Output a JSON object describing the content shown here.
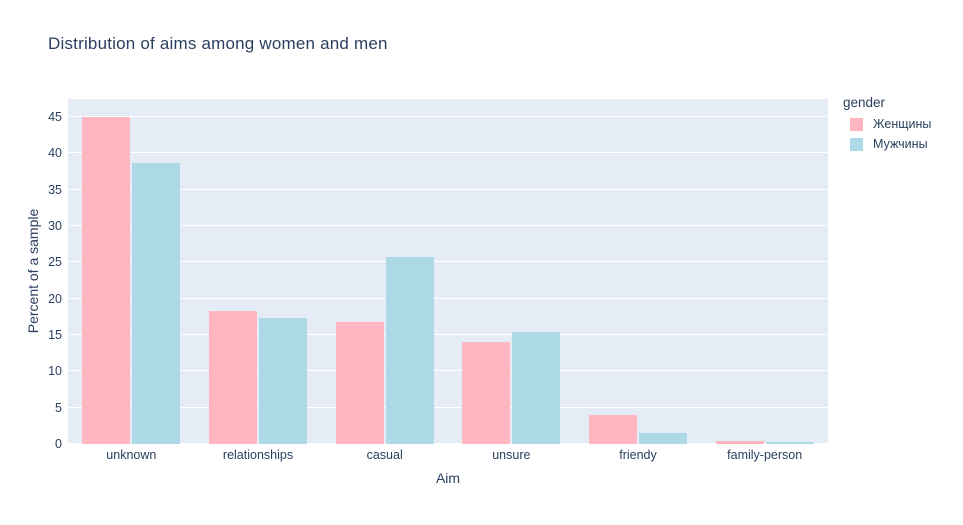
{
  "page": {
    "background": "#ffffff"
  },
  "colors": {
    "text": "#2a3f5f",
    "plot_background": "#e5ecf6",
    "gridline": "#ffffff",
    "women_pink": "#ffb6c1",
    "men_blue": "#add8e6"
  },
  "chart_data": {
    "type": "bar",
    "barmode": "group",
    "title": "Distribution of aims among women and men",
    "xlabel": "Aim",
    "ylabel": "Percent of a sample",
    "categories": [
      "unknown",
      "relationships",
      "casual",
      "unsure",
      "friendy",
      "family-person"
    ],
    "series": [
      {
        "name": "Женщины",
        "color": "#ffb6c1",
        "values": [
          45.0,
          18.3,
          16.8,
          14.1,
          4.0,
          0.4
        ]
      },
      {
        "name": "Мужчины",
        "color": "#add8e6",
        "values": [
          38.7,
          17.3,
          25.8,
          15.4,
          1.5,
          0.3
        ]
      }
    ],
    "yticks": [
      0,
      5,
      10,
      15,
      20,
      25,
      30,
      35,
      40,
      45
    ],
    "ylim": [
      0,
      47.5
    ],
    "grid": true,
    "legend_title": "gender",
    "legend_position": "right"
  }
}
